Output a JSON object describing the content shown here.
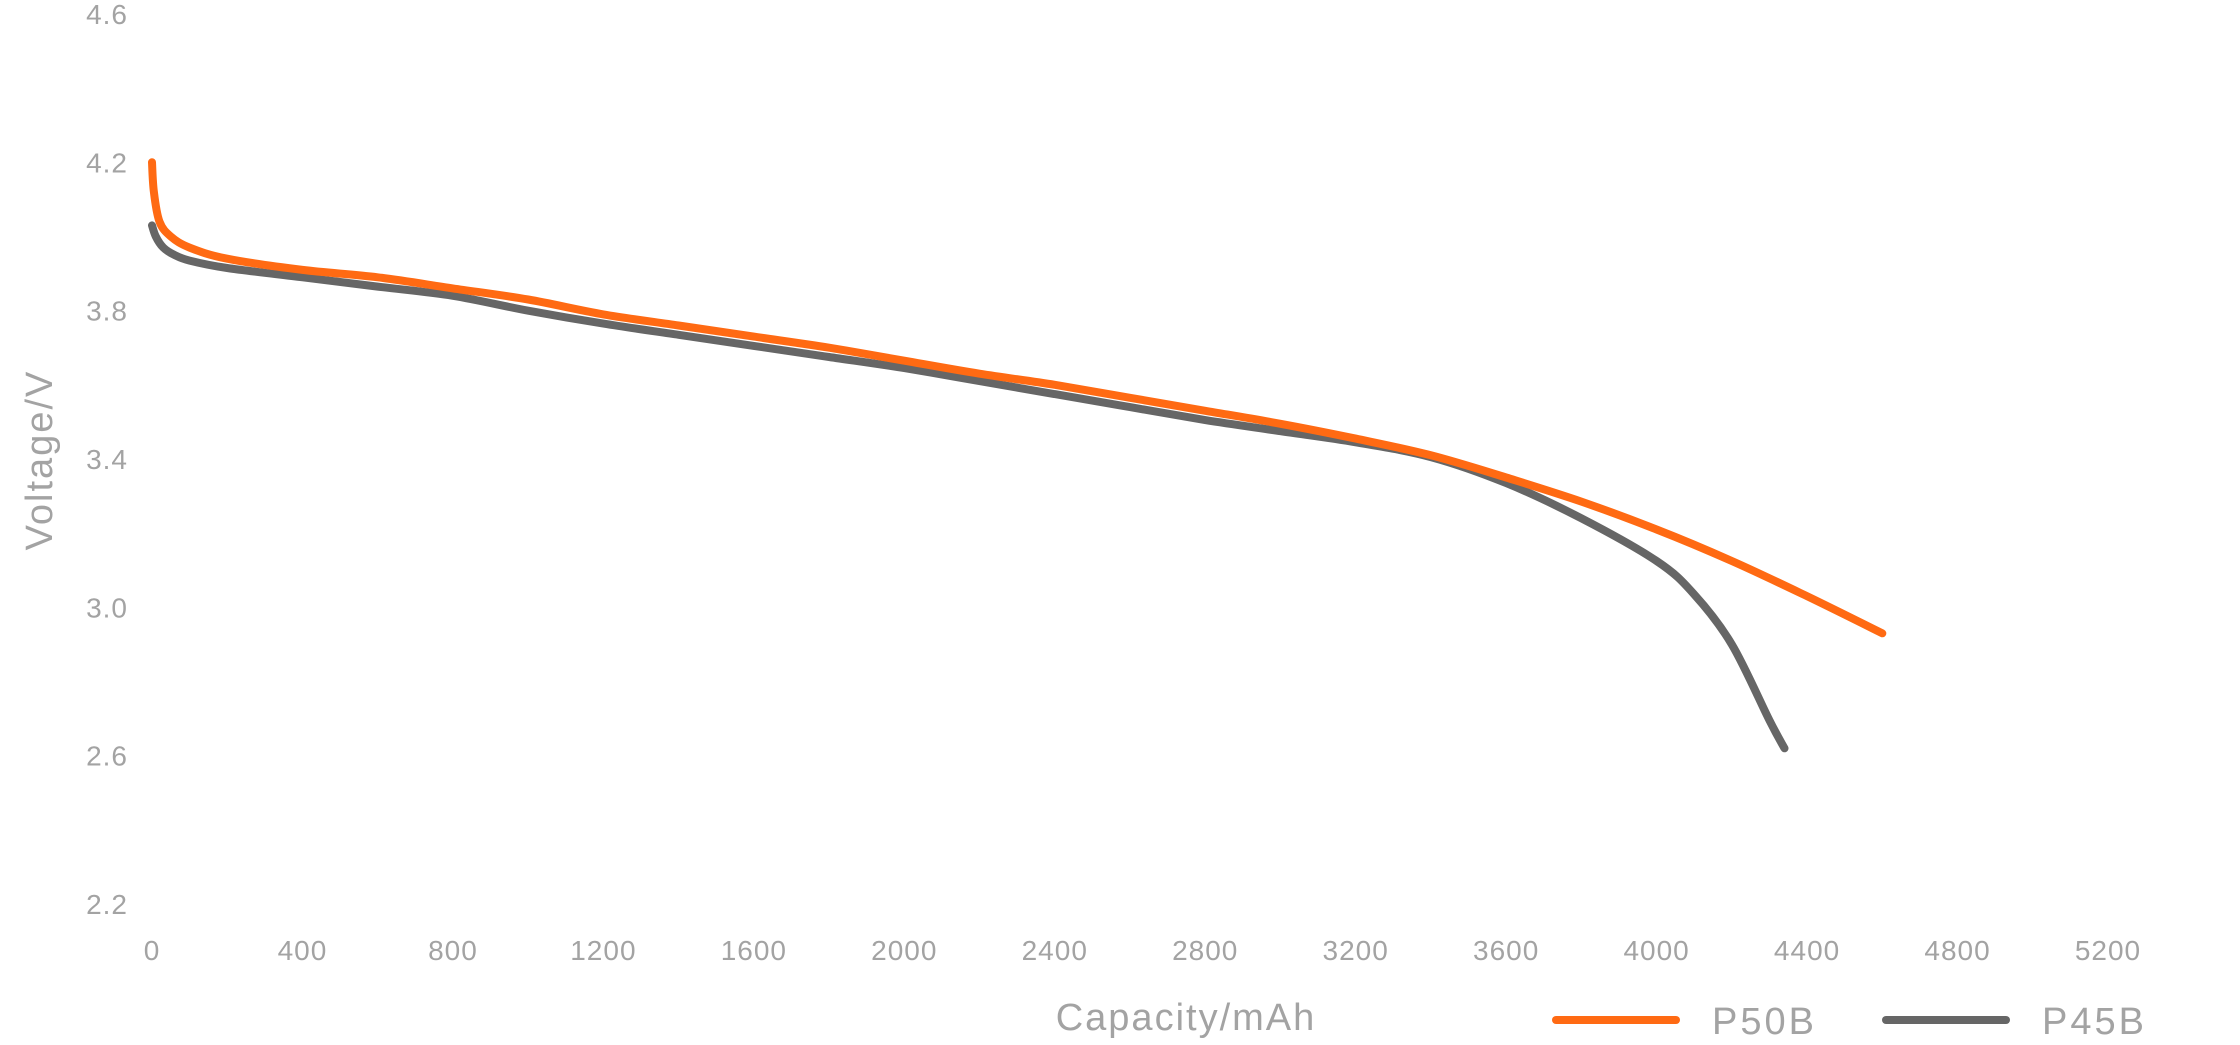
{
  "chart_data": {
    "type": "line",
    "title": "",
    "xlabel": "Capacity/mAh",
    "ylabel": "Voltage/V",
    "xlim": [
      0,
      5200
    ],
    "ylim": [
      2.2,
      4.6
    ],
    "x_ticks": [
      "0",
      "400",
      "800",
      "1200",
      "1600",
      "2000",
      "2400",
      "2800",
      "3200",
      "3600",
      "4000",
      "4400",
      "4800",
      "5200"
    ],
    "y_ticks": [
      "2.2",
      "2.6",
      "3.0",
      "3.4",
      "3.8",
      "4.2",
      "4.6"
    ],
    "grid": false,
    "legend_position": "bottom-right",
    "series": [
      {
        "name": "P50B",
        "color": "#ff6a13",
        "points": [
          [
            0,
            4.2
          ],
          [
            5,
            4.12
          ],
          [
            20,
            4.04
          ],
          [
            50,
            4.0
          ],
          [
            100,
            3.97
          ],
          [
            200,
            3.94
          ],
          [
            400,
            3.91
          ],
          [
            600,
            3.89
          ],
          [
            800,
            3.86
          ],
          [
            1000,
            3.83
          ],
          [
            1200,
            3.79
          ],
          [
            1400,
            3.76
          ],
          [
            1600,
            3.73
          ],
          [
            1800,
            3.7
          ],
          [
            2000,
            3.665
          ],
          [
            2200,
            3.63
          ],
          [
            2400,
            3.6
          ],
          [
            2600,
            3.565
          ],
          [
            2800,
            3.53
          ],
          [
            3000,
            3.495
          ],
          [
            3200,
            3.455
          ],
          [
            3400,
            3.41
          ],
          [
            3600,
            3.35
          ],
          [
            3800,
            3.285
          ],
          [
            4000,
            3.21
          ],
          [
            4200,
            3.125
          ],
          [
            4400,
            3.03
          ],
          [
            4600,
            2.93
          ]
        ]
      },
      {
        "name": "P45B",
        "color": "#666666",
        "points": [
          [
            0,
            4.03
          ],
          [
            10,
            4.0
          ],
          [
            30,
            3.97
          ],
          [
            60,
            3.95
          ],
          [
            100,
            3.935
          ],
          [
            200,
            3.915
          ],
          [
            400,
            3.89
          ],
          [
            600,
            3.865
          ],
          [
            800,
            3.84
          ],
          [
            1000,
            3.8
          ],
          [
            1200,
            3.765
          ],
          [
            1400,
            3.735
          ],
          [
            1600,
            3.705
          ],
          [
            1800,
            3.675
          ],
          [
            2000,
            3.645
          ],
          [
            2200,
            3.61
          ],
          [
            2400,
            3.575
          ],
          [
            2600,
            3.54
          ],
          [
            2800,
            3.505
          ],
          [
            3000,
            3.475
          ],
          [
            3200,
            3.445
          ],
          [
            3400,
            3.405
          ],
          [
            3600,
            3.335
          ],
          [
            3800,
            3.24
          ],
          [
            4000,
            3.125
          ],
          [
            4100,
            3.035
          ],
          [
            4200,
            2.9
          ],
          [
            4300,
            2.695
          ],
          [
            4340,
            2.62
          ]
        ]
      }
    ]
  }
}
